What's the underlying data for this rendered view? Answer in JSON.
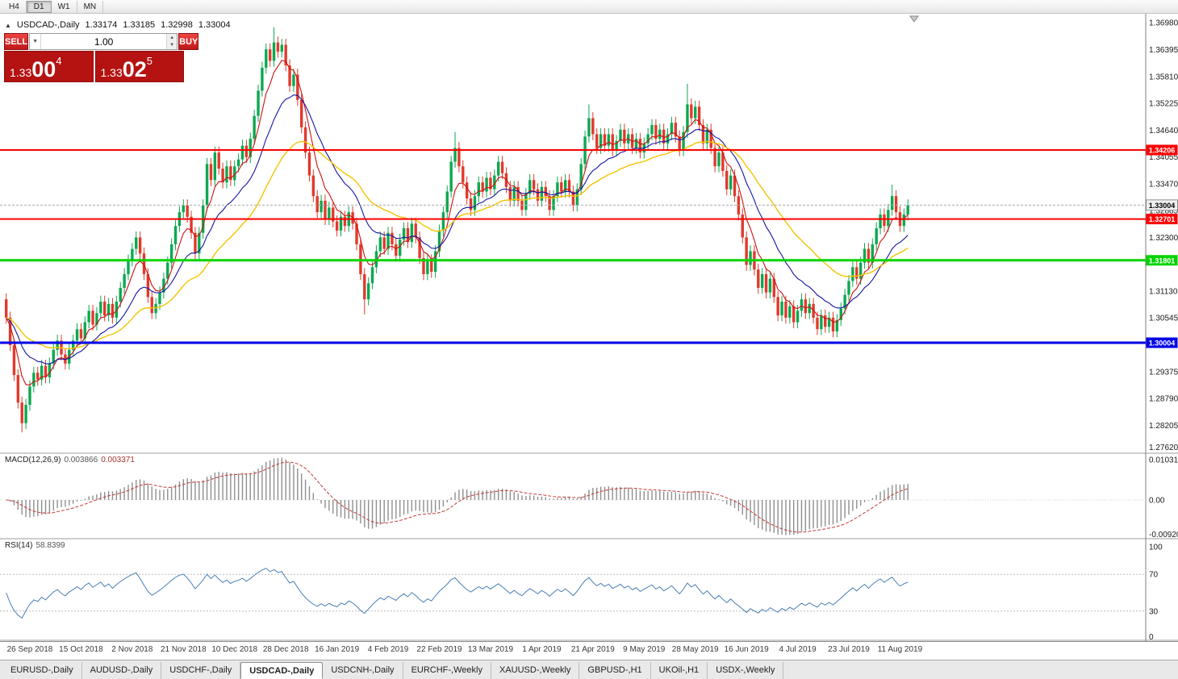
{
  "toolbar": {
    "timeframes": [
      {
        "label": "H4",
        "active": false
      },
      {
        "label": "D1",
        "active": true
      },
      {
        "label": "W1",
        "active": false
      },
      {
        "label": "MN",
        "active": false
      }
    ]
  },
  "icons": {
    "collapse_arrow": "▲",
    "volume_dropdown": "▼",
    "spinner_up": "▲",
    "spinner_down": "▼"
  },
  "chart_header": {
    "symbol": "USDCAD-,Daily",
    "open": "1.33174",
    "high": "1.33185",
    "low": "1.32998",
    "close": "1.33004"
  },
  "trade_panel": {
    "sell_label": "SELL",
    "buy_label": "BUY",
    "volume": "1.00",
    "sell_price": {
      "prefix": "1.33",
      "big": "00",
      "sup": "4"
    },
    "buy_price": {
      "prefix": "1.33",
      "big": "02",
      "sup": "5"
    }
  },
  "price_axis_labels": [
    "1.36980",
    "1.36395",
    "1.35810",
    "1.35225",
    "1.34640",
    "1.34055",
    "1.33470",
    "1.32885",
    "1.32300",
    "1.31715",
    "1.31130",
    "1.30545",
    "1.29960",
    "1.29375",
    "1.28790",
    "1.28205",
    "1.27620"
  ],
  "hlines": [
    {
      "price": 1.34206,
      "label": "1.34206",
      "color": "#fe0000",
      "width": 2
    },
    {
      "price": 1.32701,
      "label": "1.32701",
      "color": "#fe0000",
      "width": 2
    },
    {
      "price": 1.31801,
      "label": "1.31801",
      "color": "#00d400",
      "width": 3
    },
    {
      "price": 1.30004,
      "label": "1.30004",
      "color": "#0000e8",
      "width": 3
    }
  ],
  "current_price": {
    "value": 1.33004,
    "label": "1.33004"
  },
  "macd": {
    "name": "MACD(12,26,9)",
    "value_main": "0.003866",
    "value_signal": "0.003371",
    "axis_labels": [
      "0.010311",
      "0.00",
      "-0.00920"
    ],
    "axis_values": [
      0.010311,
      0,
      -0.0092
    ]
  },
  "rsi": {
    "name": "RSI(14)",
    "value": "58.8399",
    "axis_labels": [
      "100",
      "70",
      "30",
      "0"
    ],
    "axis_values": [
      100,
      70,
      30,
      0
    ],
    "levels": [
      70,
      30
    ]
  },
  "chart_data": {
    "type": "candlestick",
    "symbol": "USDCAD",
    "timeframe": "Daily",
    "ylim": [
      1.2762,
      1.3698
    ],
    "first_open": 1.3095,
    "default_wick": 0.0013,
    "up_color": "#0ca850",
    "down_color": "#e03a2c",
    "ma_colors": {
      "fast": "#cc1111",
      "mid": "#1515a3",
      "slow": "#f5c400"
    },
    "closes": [
      1.3055,
      1.2995,
      1.293,
      1.287,
      1.2825,
      1.2865,
      1.2905,
      1.2935,
      1.292,
      1.295,
      1.2925,
      1.2955,
      1.2985,
      1.3005,
      1.2975,
      1.2955,
      1.2985,
      1.3005,
      1.303,
      1.301,
      1.3045,
      1.307,
      1.304,
      1.3065,
      1.309,
      1.306,
      1.3085,
      1.3055,
      1.309,
      1.312,
      1.315,
      1.318,
      1.3205,
      1.323,
      1.3195,
      1.315,
      1.31,
      1.3065,
      1.3085,
      1.311,
      1.314,
      1.3175,
      1.3215,
      1.3255,
      1.3285,
      1.33,
      1.3275,
      1.324,
      1.3195,
      1.324,
      1.33,
      1.339,
      1.3355,
      1.3415,
      1.338,
      1.335,
      1.3385,
      1.3355,
      1.3385,
      1.34,
      1.343,
      1.3405,
      1.3445,
      1.3495,
      1.355,
      1.36,
      1.364,
      1.3615,
      1.3655,
      1.3635,
      1.365,
      1.3605,
      1.356,
      1.3585,
      1.353,
      1.347,
      1.3415,
      1.3365,
      1.332,
      1.3285,
      1.331,
      1.327,
      1.3295,
      1.3265,
      1.3245,
      1.3275,
      1.3255,
      1.3285,
      1.326,
      1.3215,
      1.315,
      1.3095,
      1.313,
      1.3165,
      1.32,
      1.323,
      1.3205,
      1.324,
      1.3215,
      1.319,
      1.3225,
      1.325,
      1.322,
      1.326,
      1.323,
      1.3185,
      1.315,
      1.318,
      1.3155,
      1.32,
      1.3245,
      1.3285,
      1.333,
      1.3395,
      1.3425,
      1.3385,
      1.335,
      1.3315,
      1.329,
      1.332,
      1.335,
      1.333,
      1.336,
      1.3335,
      1.3365,
      1.3395,
      1.337,
      1.334,
      1.331,
      1.334,
      1.331,
      1.329,
      1.3325,
      1.3355,
      1.3335,
      1.331,
      1.334,
      1.332,
      1.329,
      1.332,
      1.335,
      1.333,
      1.3355,
      1.333,
      1.33,
      1.3335,
      1.339,
      1.345,
      1.349,
      1.3455,
      1.3425,
      1.3455,
      1.343,
      1.3455,
      1.342,
      1.344,
      1.3465,
      1.3435,
      1.3455,
      1.3425,
      1.3445,
      1.3415,
      1.3435,
      1.3455,
      1.3475,
      1.3445,
      1.3465,
      1.3435,
      1.3455,
      1.348,
      1.345,
      1.342,
      1.346,
      1.352,
      1.349,
      1.3515,
      1.3475,
      1.3435,
      1.3465,
      1.3425,
      1.3385,
      1.3415,
      1.3375,
      1.3335,
      1.3365,
      1.332,
      1.328,
      1.323,
      1.317,
      1.32,
      1.316,
      1.312,
      1.315,
      1.311,
      1.314,
      1.31,
      1.306,
      1.309,
      1.3055,
      1.308,
      1.3045,
      1.307,
      1.3095,
      1.3065,
      1.3085,
      1.3055,
      1.303,
      1.306,
      1.3035,
      1.3055,
      1.3025,
      1.305,
      1.3075,
      1.3105,
      1.3135,
      1.3165,
      1.314,
      1.3175,
      1.3205,
      1.3175,
      1.3215,
      1.325,
      1.328,
      1.3255,
      1.329,
      1.332,
      1.3285,
      1.3255,
      1.328,
      1.33
    ],
    "wick_overrides": {
      "4": {
        "l": 1.2805
      },
      "68": {
        "h": 1.3688
      },
      "91": {
        "l": 1.3062
      },
      "114": {
        "h": 1.346
      },
      "148": {
        "h": 1.352
      },
      "173": {
        "h": 1.3565
      },
      "225": {
        "h": 1.3345
      }
    },
    "date_labels": [
      {
        "idx": 6,
        "text": "26 Sep 2018"
      },
      {
        "idx": 19,
        "text": "15 Oct 2018"
      },
      {
        "idx": 32,
        "text": "2 Nov 2018"
      },
      {
        "idx": 45,
        "text": "21 Nov 2018"
      },
      {
        "idx": 58,
        "text": "10 Dec 2018"
      },
      {
        "idx": 71,
        "text": "28 Dec 2018"
      },
      {
        "idx": 84,
        "text": "16 Jan 2019"
      },
      {
        "idx": 97,
        "text": "4 Feb 2019"
      },
      {
        "idx": 110,
        "text": "22 Feb 2019"
      },
      {
        "idx": 123,
        "text": "13 Mar 2019"
      },
      {
        "idx": 136,
        "text": "1 Apr 2019"
      },
      {
        "idx": 149,
        "text": "21 Apr 2019"
      },
      {
        "idx": 162,
        "text": "9 May 2019"
      },
      {
        "idx": 175,
        "text": "28 May 2019"
      },
      {
        "idx": 188,
        "text": "16 Jun 2019"
      },
      {
        "idx": 201,
        "text": "4 Jul 2019"
      },
      {
        "idx": 214,
        "text": "23 Jul 2019"
      },
      {
        "idx": 227,
        "text": "11 Aug 2019"
      }
    ]
  },
  "tabs": [
    {
      "label": "EURUSD-,Daily",
      "active": false
    },
    {
      "label": "AUDUSD-,Daily",
      "active": false
    },
    {
      "label": "USDCHF-,Daily",
      "active": false
    },
    {
      "label": "USDCAD-,Daily",
      "active": true
    },
    {
      "label": "USDCNH-,Daily",
      "active": false
    },
    {
      "label": "EURCHF-,Weekly",
      "active": false
    },
    {
      "label": "XAUUSD-,Weekly",
      "active": false
    },
    {
      "label": "GBPUSD-,H1",
      "active": false
    },
    {
      "label": "UKOil-,H1",
      "active": false
    },
    {
      "label": "USDX-,Weekly",
      "active": false
    }
  ]
}
